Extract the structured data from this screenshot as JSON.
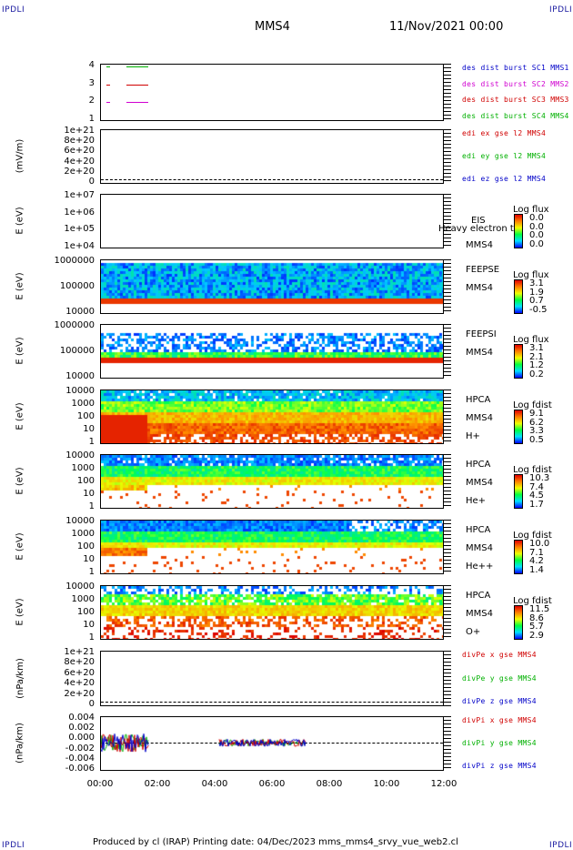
{
  "corners": {
    "label": "IPDLI"
  },
  "header": {
    "spacecraft": "MMS4",
    "datetime": "11/Nov/2021 00:00"
  },
  "x_axis": {
    "ticks": [
      "00:00",
      "02:00",
      "04:00",
      "06:00",
      "08:00",
      "10:00",
      "12:00"
    ]
  },
  "footer": {
    "text": "Produced by cl (IRAP)   Printing date: 04/Dec/2023   mms_mms4_srvy_vue_web2.cl"
  },
  "colors": {
    "blue": "#0000c8",
    "magenta": "#d000d0",
    "red": "#d00000",
    "green": "#00b000"
  },
  "panels": [
    {
      "id": "p1",
      "ylabel": "",
      "ticks": [
        "4",
        "3",
        "2",
        "1"
      ],
      "legend": [
        {
          "text": "des dist burst SC1 MMS1",
          "color": "#0000c8"
        },
        {
          "text": "des dist burst SC2 MMS2",
          "color": "#d000d0"
        },
        {
          "text": "des dist burst SC3 MMS3",
          "color": "#d00000"
        },
        {
          "text": "des dist burst SC4 MMS4",
          "color": "#00b000"
        }
      ]
    },
    {
      "id": "p2",
      "ylabel": "(mV/m)",
      "ticks": [
        "1e+21",
        "8e+20",
        "6e+20",
        "4e+20",
        "2e+20",
        "0"
      ],
      "legend": [
        {
          "text": "edi ex gse l2 MMS4",
          "color": "#d00000"
        },
        {
          "text": "edi ey gse l2 MMS4",
          "color": "#00b000"
        },
        {
          "text": "edi ez gse l2 MMS4",
          "color": "#0000c8"
        }
      ]
    },
    {
      "id": "p3",
      "ylabel": "E (eV)",
      "ticks": [
        "1e+07",
        "1e+06",
        "1e+05",
        "1e+04"
      ],
      "inst": [
        "EIS",
        "Heavy electron to",
        "MMS4"
      ],
      "cbar": {
        "title": "Log flux",
        "values": [
          "0.0",
          "0.0",
          "0.0",
          "0.0"
        ]
      }
    },
    {
      "id": "p4",
      "ylabel": "E (eV)",
      "ticks": [
        "1000000",
        "100000",
        "10000"
      ],
      "inst": [
        "FEEPSE",
        "MMS4"
      ],
      "cbar": {
        "title": "Log flux",
        "values": [
          "3.1",
          "1.9",
          "0.7",
          "-0.5"
        ]
      }
    },
    {
      "id": "p5",
      "ylabel": "E (eV)",
      "ticks": [
        "1000000",
        "100000",
        "10000"
      ],
      "inst": [
        "FEEPSI",
        "MMS4"
      ],
      "cbar": {
        "title": "Log flux",
        "values": [
          "3.1",
          "2.1",
          "1.2",
          "0.2"
        ]
      }
    },
    {
      "id": "p6",
      "ylabel": "E (eV)",
      "ticks": [
        "10000",
        "1000",
        "100",
        "10",
        "1"
      ],
      "inst": [
        "HPCA",
        "MMS4",
        "H+"
      ],
      "cbar": {
        "title": "Log fdist",
        "values": [
          "9.1",
          "6.2",
          "3.3",
          "0.5"
        ]
      }
    },
    {
      "id": "p7",
      "ylabel": "E (eV)",
      "ticks": [
        "10000",
        "1000",
        "100",
        "10",
        "1"
      ],
      "inst": [
        "HPCA",
        "MMS4",
        "He+"
      ],
      "cbar": {
        "title": "Log fdist",
        "values": [
          "10.3",
          "7.4",
          "4.5",
          "1.7"
        ]
      }
    },
    {
      "id": "p8",
      "ylabel": "E (eV)",
      "ticks": [
        "10000",
        "1000",
        "100",
        "10",
        "1"
      ],
      "inst": [
        "HPCA",
        "MMS4",
        "He++"
      ],
      "cbar": {
        "title": "Log fdist",
        "values": [
          "10.0",
          "7.1",
          "4.2",
          "1.4"
        ]
      }
    },
    {
      "id": "p9",
      "ylabel": "E (eV)",
      "ticks": [
        "10000",
        "1000",
        "100",
        "10",
        "1"
      ],
      "inst": [
        "HPCA",
        "MMS4",
        "O+"
      ],
      "cbar": {
        "title": "Log fdist",
        "values": [
          "11.5",
          "8.6",
          "5.7",
          "2.9"
        ]
      }
    },
    {
      "id": "p10",
      "ylabel": "(nPa/km)",
      "ticks": [
        "1e+21",
        "8e+20",
        "6e+20",
        "4e+20",
        "2e+20",
        "0"
      ],
      "legend": [
        {
          "text": "divPe x gse MMS4",
          "color": "#d00000"
        },
        {
          "text": "divPe y gse MMS4",
          "color": "#00b000"
        },
        {
          "text": "divPe z gse MMS4",
          "color": "#0000c8"
        }
      ]
    },
    {
      "id": "p11",
      "ylabel": "(nPa/km)",
      "ticks": [
        "0.004",
        "0.002",
        "0.000",
        "-0.002",
        "-0.004",
        "-0.006"
      ],
      "legend": [
        {
          "text": "divPi x gse MMS4",
          "color": "#d00000"
        },
        {
          "text": "divPi y gse MMS4",
          "color": "#00b000"
        },
        {
          "text": "divPi z gse MMS4",
          "color": "#0000c8"
        }
      ]
    }
  ]
}
